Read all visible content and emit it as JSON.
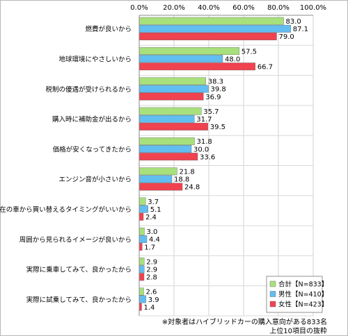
{
  "chart_data": {
    "type": "bar",
    "orientation": "horizontal",
    "xlim": [
      0,
      100
    ],
    "x_ticks": [
      "0.0%",
      "20.0%",
      "40.0%",
      "60.0%",
      "80.0%",
      "100.0%"
    ],
    "categories": [
      "燃費が良いから",
      "地球環境にやさしいから",
      "税制の優遇が受けられるから",
      "購入時に補助金が出るから",
      "価格が安くなってきたから",
      "エンジン音が小さいから",
      "現在の車から買い替えるタイミングがいいから",
      "周囲から見られるイメージが良いから",
      "実際に乗車してみて、良かったから",
      "実際に試乗してみて、良かったから"
    ],
    "series": [
      {
        "name": "合計【N=833】",
        "color": "#a7e07c",
        "values": [
          83.0,
          57.5,
          38.3,
          35.7,
          31.8,
          21.8,
          3.7,
          3.0,
          2.9,
          2.6
        ],
        "labels": [
          "83.0",
          "57.5",
          "38.3",
          "35.7",
          "31.8",
          "21.8",
          "3.7",
          "3.0",
          "2.9",
          "2.6"
        ]
      },
      {
        "name": "男性【N=410】",
        "color": "#62bdf0",
        "values": [
          87.1,
          48.0,
          39.8,
          31.7,
          30.0,
          18.8,
          5.1,
          4.4,
          2.9,
          3.9
        ],
        "labels": [
          "87.1",
          "48.0",
          "39.8",
          "31.7",
          "30.0",
          "18.8",
          "5.1",
          "4.4",
          "2.9",
          "3.9"
        ]
      },
      {
        "name": "女性【N=423】",
        "color": "#f0424f",
        "values": [
          79.0,
          66.7,
          36.9,
          39.5,
          33.6,
          24.8,
          2.4,
          1.7,
          2.8,
          1.4
        ],
        "labels": [
          "79.0",
          "66.7",
          "36.9",
          "39.5",
          "33.6",
          "24.8",
          "2.4",
          "1.7",
          "2.8",
          "1.4"
        ]
      }
    ],
    "legend_position": "bottom-right",
    "grid": true,
    "notes": [
      "※対象者はハイブリッドカーの購入意向がある833名",
      "上位10項目の抜粋"
    ]
  }
}
